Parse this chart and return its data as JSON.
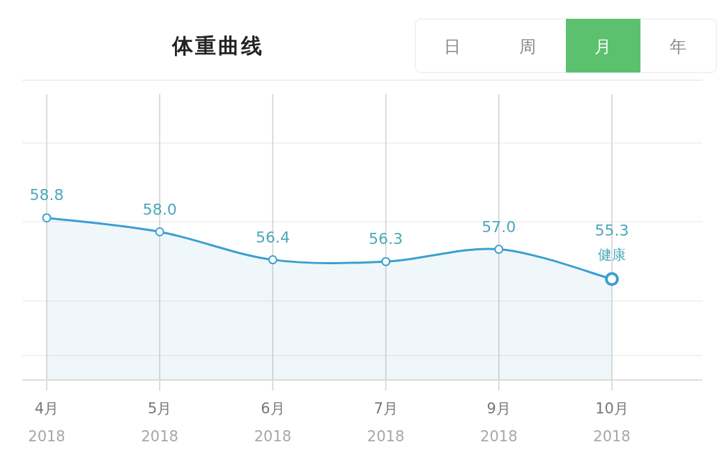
{
  "chart_data": {
    "type": "area",
    "title": "体重曲线",
    "categories": [
      "4月\n2018",
      "5月\n2018",
      "6月\n2018",
      "7月\n2018",
      "9月\n2018",
      "10月\n2018"
    ],
    "series": [
      {
        "color": "#3a9fd0",
        "values": [
          58.8,
          58.0,
          56.4,
          56.3,
          57.0,
          55.3
        ],
        "value_labels": [
          "58.8",
          "58.0",
          "56.4",
          "56.3",
          "57.0",
          "55.3"
        ]
      }
    ],
    "ref_lines": [
      {
        "axis": "x",
        "value": "4月\n2018",
        "color": "#d0d0d0"
      },
      {
        "axis": "x",
        "value": "5月\n2018",
        "color": "#d0d0d0"
      },
      {
        "axis": "x",
        "value": "6月\n2018",
        "color": "#d0d0d0"
      },
      {
        "axis": "x",
        "value": "7月\n2018",
        "color": "#d0d0d0"
      },
      {
        "axis": "x",
        "value": "9月\n2018",
        "color": "#d0d0d0"
      },
      {
        "axis": "x",
        "value": "10月\n2018",
        "color": "#d0d0d0"
      }
    ],
    "grid": true,
    "marker": "circle",
    "line_style": "solid",
    "annotations": [
      "日",
      "周",
      "月",
      "年",
      {
        "text": "健康",
        "x": "10月\n2018",
        "y": 55.3
      }
    ]
  }
}
